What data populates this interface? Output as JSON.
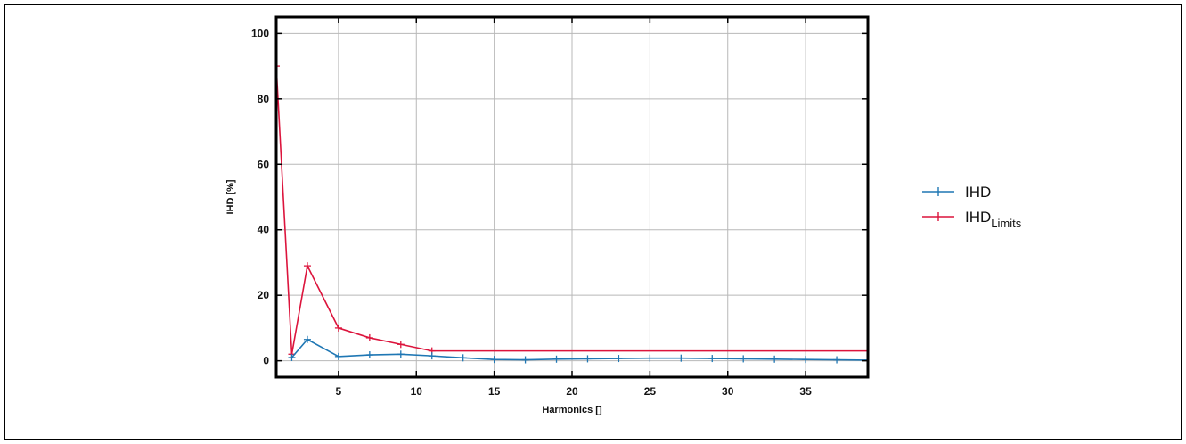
{
  "chart_data": {
    "type": "line",
    "xlabel": "Harmonics []",
    "ylabel": "IHD [%]",
    "xlim": [
      1,
      39
    ],
    "ylim": [
      -5,
      105
    ],
    "xticks": [
      5,
      10,
      15,
      20,
      25,
      30,
      35
    ],
    "yticks": [
      0,
      20,
      40,
      60,
      80,
      100
    ],
    "grid": true,
    "legend_position": "right",
    "series": [
      {
        "name": "IHD",
        "color": "#1f77b4",
        "x": [
          2,
          3,
          5,
          7,
          9,
          11,
          13,
          15,
          17,
          19,
          21,
          23,
          25,
          27,
          29,
          31,
          33,
          35,
          37,
          39
        ],
        "y": [
          1.0,
          6.5,
          1.3,
          1.8,
          2.0,
          1.5,
          0.9,
          0.4,
          0.3,
          0.5,
          0.6,
          0.7,
          0.8,
          0.8,
          0.7,
          0.6,
          0.5,
          0.4,
          0.3,
          0.2
        ]
      },
      {
        "name": "IHD",
        "name_subscript": "Limits",
        "color": "#dc143c",
        "x": [
          1,
          2,
          3,
          5,
          7,
          9,
          11,
          13,
          15,
          17,
          19,
          21,
          23,
          25,
          27,
          29,
          31,
          33,
          35,
          37,
          39
        ],
        "y": [
          90,
          2.0,
          29,
          10,
          7,
          5,
          3,
          3,
          3,
          3,
          3,
          3,
          3,
          3,
          3,
          3,
          3,
          3,
          3,
          3,
          3
        ]
      }
    ]
  }
}
